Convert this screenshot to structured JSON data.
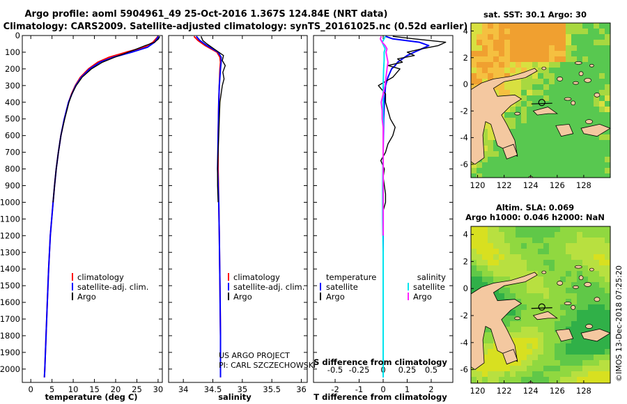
{
  "title_line1": "Argo profile: aoml 5904961_49 25-Oct-2016 1.367S 124.84E (NRT data)",
  "title_line2": "Climatology: CARS2009. Satellite-adjusted climatology: synTS_20161025.nc (0.52d earlier)",
  "credit_project": "US ARGO PROJECT",
  "credit_pi": "PI: CARL SZCZECHOWSKI",
  "timestamp": "©IMOS 13-Dec-2018 07:25:20",
  "colors": {
    "climatology": "#ff0000",
    "satellite": "#0000ff",
    "argo": "#000000",
    "sal_satellite": "#00e5ee",
    "sal_argo": "#ff22ff"
  },
  "chart_data": [
    {
      "id": "temperature",
      "type": "line",
      "xlabel": "temperature (deg C)",
      "ylabel": "depth",
      "xlim": [
        -2,
        31
      ],
      "ylim": [
        2080,
        0
      ],
      "xticks": [
        0,
        5,
        10,
        15,
        20,
        25,
        30
      ],
      "xticklabels": [
        "0",
        "5",
        "10",
        "15",
        "20",
        "25",
        "30"
      ],
      "yticks": [
        0,
        100,
        200,
        300,
        400,
        500,
        600,
        700,
        800,
        900,
        1000,
        1100,
        1200,
        1300,
        1400,
        1500,
        1600,
        1700,
        1800,
        1900,
        2000
      ],
      "legend": [
        "climatology",
        "satellite-adj. clim.",
        "Argo"
      ],
      "series": [
        {
          "name": "climatology",
          "color": "#ff0000",
          "depth": [
            5,
            40,
            70,
            100,
            130,
            160,
            200,
            250,
            300,
            350,
            400,
            500,
            600,
            700,
            800,
            900,
            1000,
            1200,
            1400,
            1600,
            1800,
            2000,
            2050
          ],
          "values": [
            30.0,
            28.8,
            26.8,
            22.5,
            18.5,
            15.8,
            13.6,
            11.7,
            10.5,
            9.6,
            8.9,
            7.9,
            7.1,
            6.5,
            6.0,
            5.6,
            5.25,
            4.6,
            4.2,
            3.9,
            3.6,
            3.3,
            3.2
          ]
        },
        {
          "name": "satellite-adj. clim.",
          "color": "#0000ff",
          "depth": [
            5,
            40,
            70,
            100,
            130,
            160,
            200,
            250,
            300,
            350,
            400,
            500,
            600,
            700,
            800,
            900,
            1000,
            1200,
            1400,
            1600,
            1800,
            2000,
            2050
          ],
          "values": [
            30.1,
            29.2,
            27.5,
            23.8,
            19.5,
            16.3,
            13.9,
            11.9,
            10.6,
            9.7,
            8.9,
            7.9,
            7.1,
            6.5,
            6.0,
            5.6,
            5.25,
            4.6,
            4.2,
            3.9,
            3.6,
            3.3,
            3.2
          ]
        },
        {
          "name": "Argo",
          "color": "#000000",
          "depth": [
            5,
            20,
            40,
            60,
            80,
            100,
            130,
            160,
            200,
            250,
            300,
            350,
            400,
            500,
            600,
            700,
            800,
            900,
            1000
          ],
          "values": [
            30.4,
            30.1,
            29.2,
            27.0,
            25.0,
            23.0,
            19.8,
            16.9,
            14.3,
            12.1,
            10.7,
            9.7,
            9.0,
            8.0,
            7.1,
            6.5,
            6.0,
            5.6,
            5.25
          ]
        }
      ]
    },
    {
      "id": "salinity",
      "type": "line",
      "xlabel": "salinity",
      "xlim": [
        33.75,
        36.1
      ],
      "ylim": [
        2080,
        0
      ],
      "xticks": [
        34,
        34.5,
        35,
        35.5,
        36
      ],
      "xticklabels": [
        "34",
        "34.5",
        "35",
        "35.5",
        "36"
      ],
      "legend": [
        "climatology",
        "satellite-adj. clim.",
        "Argo"
      ],
      "series": [
        {
          "name": "climatology",
          "color": "#ff0000",
          "depth": [
            5,
            30,
            60,
            100,
            130,
            160,
            200,
            300,
            400,
            600,
            800,
            1000,
            1200,
            1500,
            1800,
            2050
          ],
          "values": [
            34.18,
            34.25,
            34.37,
            34.57,
            34.62,
            34.63,
            34.62,
            34.61,
            34.6,
            34.59,
            34.59,
            34.6,
            34.61,
            34.62,
            34.63,
            34.63
          ]
        },
        {
          "name": "satellite-adj. clim.",
          "color": "#0000ff",
          "depth": [
            5,
            30,
            60,
            100,
            130,
            160,
            200,
            300,
            400,
            600,
            800,
            1000,
            1200,
            1500,
            1800,
            2050
          ],
          "values": [
            34.22,
            34.28,
            34.4,
            34.59,
            34.64,
            34.64,
            34.63,
            34.61,
            34.6,
            34.59,
            34.58,
            34.6,
            34.61,
            34.62,
            34.63,
            34.63
          ]
        },
        {
          "name": "Argo",
          "color": "#000000",
          "depth": [
            5,
            30,
            50,
            80,
            100,
            120,
            150,
            180,
            220,
            260,
            300,
            350,
            400,
            500,
            600,
            700,
            800,
            900,
            1000
          ],
          "values": [
            34.3,
            34.33,
            34.4,
            34.52,
            34.6,
            34.68,
            34.66,
            34.71,
            34.67,
            34.69,
            34.66,
            34.64,
            34.62,
            34.61,
            34.6,
            34.59,
            34.58,
            34.58,
            34.59
          ]
        }
      ]
    },
    {
      "id": "difference",
      "type": "line",
      "xlabel": "T difference from climatology",
      "top_xlabel": "S difference from climatology",
      "xlim": [
        -2.9,
        2.9
      ],
      "ylim": [
        2080,
        0
      ],
      "xticks": [
        -2,
        -1,
        0,
        1,
        2
      ],
      "xticklabels": [
        "-2",
        "-1",
        "0",
        "1",
        "2"
      ],
      "top_xticks": [
        -0.5,
        -0.25,
        0,
        0.25,
        0.5
      ],
      "top_xticklabels": [
        "-0.5",
        "-0.25",
        "0",
        "0.25",
        "0.5"
      ],
      "s_scale_factor": 4,
      "legend_temperature_title": "temperature",
      "legend_salinity_title": "salinity",
      "legend_temperature": [
        "satellite",
        "Argo"
      ],
      "legend_salinity": [
        "satellite",
        "Argo"
      ],
      "series": [
        {
          "name": "T satellite",
          "color": "#0000ff",
          "depth": [
            5,
            20,
            40,
            60,
            80,
            100,
            120,
            140,
            160,
            180,
            200,
            250,
            300,
            400,
            500,
            700,
            900,
            1100,
            1300,
            1500,
            1700,
            1900,
            2050
          ],
          "values": [
            0.1,
            0.4,
            1.5,
            1.9,
            1.6,
            1.3,
            1.0,
            0.8,
            0.6,
            0.5,
            0.35,
            0.2,
            0.1,
            0.05,
            0.02,
            0.0,
            0.0,
            0.0,
            0.0,
            0.0,
            0.0,
            0.0,
            0.0
          ]
        },
        {
          "name": "T Argo",
          "color": "#000000",
          "depth": [
            5,
            20,
            40,
            60,
            80,
            100,
            120,
            140,
            160,
            180,
            200,
            250,
            300,
            350,
            400,
            450,
            500,
            550,
            600,
            650,
            700,
            750,
            800,
            850,
            900,
            950,
            1000,
            1050
          ],
          "values": [
            0.4,
            1.3,
            2.6,
            2.3,
            1.6,
            1.0,
            1.3,
            0.6,
            0.8,
            0.2,
            0.7,
            0.4,
            -0.2,
            0.1,
            0.1,
            0.2,
            0.3,
            0.5,
            0.4,
            0.2,
            0.1,
            -0.1,
            0.05,
            0.0,
            0.05,
            0.1,
            0.1,
            0.0
          ]
        },
        {
          "name": "S satellite",
          "color": "#00e5ee",
          "depth": [
            5,
            20,
            40,
            60,
            80,
            100,
            150,
            200,
            300,
            500,
            700,
            900,
            1100,
            1300,
            1500,
            1700,
            1900,
            2050
          ],
          "values": [
            0.02,
            0.01,
            -0.01,
            0.005,
            0.02,
            0.01,
            0.01,
            0.005,
            0.0,
            0.0,
            0.0,
            -0.005,
            -0.005,
            0.0,
            0.0,
            0.0,
            0.0,
            0.0
          ]
        },
        {
          "name": "S Argo",
          "color": "#ff22ff",
          "depth": [
            5,
            20,
            40,
            60,
            80,
            100,
            130,
            160,
            200,
            250,
            300,
            350,
            400,
            450,
            500,
            550,
            600,
            700,
            800,
            900,
            1000,
            1100,
            1200
          ],
          "values": [
            -0.02,
            -0.03,
            -0.01,
            0.02,
            0.04,
            0.03,
            0.04,
            0.05,
            0.04,
            0.03,
            0.02,
            0.0,
            -0.02,
            -0.01,
            -0.01,
            0.0,
            0.0,
            0.0,
            0.0,
            0.0,
            0.0,
            0.0,
            0.0
          ]
        }
      ]
    },
    {
      "id": "sst_map",
      "type": "heatmap",
      "title": "sat. SST: 30.1 Argo: 30",
      "xlim": [
        119.5,
        130
      ],
      "ylim": [
        -7,
        4.6
      ],
      "xticks": [
        120,
        122,
        124,
        126,
        128
      ],
      "xticklabels": [
        "120",
        "122",
        "124",
        "126",
        "128"
      ],
      "yticks": [
        4,
        2,
        0,
        -2,
        -4,
        -6
      ],
      "yticklabels": [
        "4",
        "2",
        "0",
        "-2",
        "-4",
        "-6"
      ],
      "marker": {
        "lon": 124.84,
        "lat": -1.367
      }
    },
    {
      "id": "sla_map",
      "type": "heatmap",
      "title_line1": "Altim. SLA: 0.069",
      "title_line2": "Argo h1000: 0.046 h2000: NaN",
      "xlim": [
        119.5,
        130
      ],
      "ylim": [
        -7,
        4.6
      ],
      "xticks": [
        120,
        122,
        124,
        126,
        128
      ],
      "xticklabels": [
        "120",
        "122",
        "124",
        "126",
        "128"
      ],
      "yticks": [
        4,
        2,
        0,
        -2,
        -4,
        -6
      ],
      "yticklabels": [
        "4",
        "2",
        "0",
        "-2",
        "-4",
        "-6"
      ],
      "marker": {
        "lon": 124.84,
        "lat": -1.367
      }
    }
  ]
}
